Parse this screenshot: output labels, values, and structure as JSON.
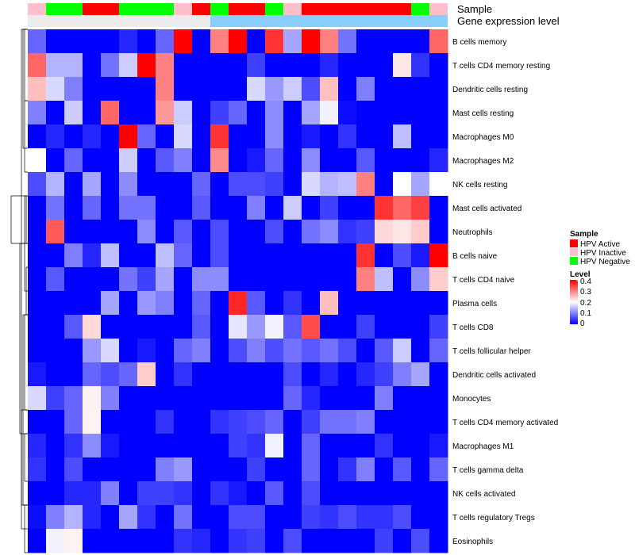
{
  "chart_data": {
    "type": "heatmap",
    "annotation_labels": [
      "Sample",
      "Gene expression level"
    ],
    "rows": [
      "B cells memory",
      "T cells CD4 memory resting",
      "Dendritic cells resting",
      "Mast cells resting",
      "Macrophages M0",
      "Macrophages M2",
      "NK cells resting",
      "Mast cells activated",
      "Neutrophils",
      "B cells naive",
      "T cells CD4 naive",
      "Plasma cells",
      "T cells CD8",
      "T cells follicular helper",
      "Dendritic cells activated",
      "Monocytes",
      "T cells CD4 memory activated",
      "Macrophages M1",
      "T cells gamma delta",
      "NK cells activated",
      "T cells regulatory  Tregs",
      "Eosinophils"
    ],
    "sample_groups": [
      "inactive",
      "negative",
      "negative",
      "active",
      "active",
      "negative",
      "negative",
      "negative",
      "inactive",
      "active",
      "negative",
      "active",
      "active",
      "negative",
      "inactive",
      "active",
      "active",
      "active",
      "active",
      "active",
      "active",
      "negative",
      "inactive"
    ],
    "expression_split": 10,
    "legend_sample": {
      "title": "Sample",
      "items": [
        {
          "key": "active",
          "label": "HPV Active",
          "color": "#ff0000"
        },
        {
          "key": "inactive",
          "label": "HPV Inactive",
          "color": "#ffc0cb"
        },
        {
          "key": "negative",
          "label": "HPV Negative",
          "color": "#00ff00"
        }
      ]
    },
    "legend_level": {
      "title": "Level",
      "ticks": [
        "0.4",
        "0.3",
        "0.2",
        "0.1",
        "0"
      ],
      "min": 0,
      "max": 0.4
    },
    "expression_colors": [
      "#ececec",
      "#87cefa"
    ],
    "color_scale": {
      "low": "#0000ff",
      "mid": "#ffffff",
      "high": "#ff0000",
      "midpoint": 0.2
    },
    "values": [
      [
        0.08,
        0,
        0,
        0,
        0,
        0.03,
        0,
        0.08,
        0.4,
        0,
        0.3,
        0.4,
        0,
        0.36,
        0.13,
        0.4,
        0.3,
        0.09,
        0,
        0,
        0,
        0,
        0.32
      ],
      [
        0.32,
        0.14,
        0.14,
        0,
        0.09,
        0.16,
        0.4,
        0.3,
        0,
        0,
        0,
        0,
        0.05,
        0,
        0,
        0,
        0.03,
        0,
        0,
        0,
        0.22,
        0.04,
        0
      ],
      [
        0.25,
        0.17,
        0.1,
        0,
        0,
        0,
        0,
        0.3,
        0,
        0,
        0,
        0,
        0.17,
        0.12,
        0.16,
        0.06,
        0.25,
        0,
        0.1,
        0,
        0,
        0,
        0
      ],
      [
        0.1,
        0,
        0.16,
        0,
        0.32,
        0,
        0,
        0.28,
        0.16,
        0,
        0.05,
        0.08,
        0,
        0.11,
        0,
        0.13,
        0.19,
        0.01,
        0,
        0,
        0,
        0,
        0
      ],
      [
        0,
        0.03,
        0,
        0.03,
        0,
        0.4,
        0.08,
        0,
        0.17,
        0,
        0.36,
        0,
        0,
        0.11,
        0,
        0.02,
        0,
        0.04,
        0,
        0,
        0.15,
        0,
        0
      ],
      [
        0.2,
        0,
        0.08,
        0,
        0,
        0.16,
        0,
        0.07,
        0.1,
        0,
        0.29,
        0,
        0.02,
        0.08,
        0,
        0.11,
        0,
        0,
        0.07,
        0,
        0,
        0,
        0.03
      ],
      [
        0.06,
        0.14,
        0,
        0.13,
        0,
        0.11,
        0,
        0,
        0,
        0.08,
        0,
        0.06,
        0.06,
        0.05,
        0,
        0.17,
        0.14,
        0.15,
        0.3,
        0,
        0.2,
        0.13,
        0.2
      ],
      [
        0,
        0.09,
        0,
        0.08,
        0,
        0.09,
        0.09,
        0,
        0,
        0.07,
        0,
        0,
        0.1,
        0,
        0.16,
        0,
        0.05,
        0,
        0,
        0.36,
        0.32,
        0.35,
        0
      ],
      [
        0,
        0.33,
        0,
        0,
        0,
        0,
        0.11,
        0,
        0.07,
        0,
        0.06,
        0,
        0,
        0.06,
        0,
        0.09,
        0.11,
        0.04,
        0.05,
        0.23,
        0.22,
        0.24,
        0
      ],
      [
        0,
        0,
        0.1,
        0.03,
        0.15,
        0,
        0,
        0.15,
        0.08,
        0,
        0.06,
        0,
        0,
        0,
        0,
        0,
        0,
        0,
        0.36,
        0,
        0.06,
        0.02,
        0.4
      ],
      [
        0,
        0.07,
        0,
        0,
        0,
        0.09,
        0.05,
        0.13,
        0,
        0.11,
        0.11,
        0,
        0,
        0,
        0,
        0,
        0,
        0,
        0.3,
        0.15,
        0,
        0.11,
        0.24
      ],
      [
        0,
        0,
        0,
        0,
        0.13,
        0,
        0.12,
        0.1,
        0,
        0.08,
        0,
        0.37,
        0.07,
        0,
        0.04,
        0,
        0.25,
        0,
        0,
        0,
        0,
        0,
        0
      ],
      [
        0,
        0,
        0.07,
        0.23,
        0,
        0,
        0,
        0,
        0,
        0.07,
        0,
        0.18,
        0.12,
        0.19,
        0.07,
        0.34,
        0,
        0,
        0.05,
        0,
        0,
        0,
        0.05
      ],
      [
        0,
        0,
        0,
        0.12,
        0.17,
        0,
        0.02,
        0,
        0.08,
        0.1,
        0,
        0.06,
        0.1,
        0.06,
        0.09,
        0.07,
        0.09,
        0.06,
        0,
        0.07,
        0.16,
        0,
        0.08
      ],
      [
        0.02,
        0,
        0,
        0.08,
        0.06,
        0.08,
        0.24,
        0,
        0.04,
        0,
        0,
        0,
        0,
        0,
        0.06,
        0,
        0.03,
        0,
        0.03,
        0.05,
        0.1,
        0.13,
        0
      ],
      [
        0.17,
        0.05,
        0.08,
        0.21,
        0.1,
        0,
        0,
        0,
        0,
        0,
        0,
        0,
        0,
        0,
        0.08,
        0.03,
        0,
        0,
        0,
        0.1,
        0,
        0,
        0
      ],
      [
        0,
        0,
        0.08,
        0.21,
        0,
        0,
        0,
        0.04,
        0,
        0,
        0.04,
        0.05,
        0.06,
        0.08,
        0,
        0.05,
        0.09,
        0.09,
        0.1,
        0,
        0,
        0,
        0
      ],
      [
        0.03,
        0,
        0.04,
        0.11,
        0.02,
        0,
        0,
        0,
        0,
        0,
        0,
        0.05,
        0.04,
        0.19,
        0,
        0.08,
        0,
        0,
        0,
        0.04,
        0,
        0,
        0.02
      ],
      [
        0.04,
        0,
        0.06,
        0,
        0,
        0,
        0,
        0.1,
        0.12,
        0,
        0,
        0,
        0.05,
        0,
        0,
        0.08,
        0,
        0.04,
        0.1,
        0,
        0.07,
        0,
        0.08
      ],
      [
        0,
        0,
        0.03,
        0.03,
        0.1,
        0,
        0.05,
        0.05,
        0.04,
        0,
        0.04,
        0.02,
        0,
        0.07,
        0,
        0.06,
        0,
        0,
        0,
        0,
        0,
        0,
        0
      ],
      [
        0.01,
        0.1,
        0.14,
        0.03,
        0,
        0.13,
        0.04,
        0,
        0.09,
        0,
        0,
        0.06,
        0.06,
        0,
        0,
        0.05,
        0.04,
        0.06,
        0.04,
        0.04,
        0.06,
        0,
        0
      ],
      [
        0,
        0.19,
        0.21,
        0,
        0,
        0,
        0,
        0,
        0.04,
        0.03,
        0,
        0.04,
        0.05,
        0,
        0.06,
        0,
        0,
        0,
        0,
        0.05,
        0,
        0.06,
        0
      ]
    ],
    "dendrogram": [
      {
        "stem": 22,
        "h": 3,
        "t1": 1,
        "b1": 8,
        "t2": 8,
        "b2": 21
      },
      {
        "stem": 21,
        "h": 6,
        "t1": 8,
        "b1": 13,
        "t2": 13,
        "b2": 10
      },
      {
        "stem": 20,
        "h": 4,
        "t1": 10,
        "b1": 12,
        "t2": 12,
        "b2": 18
      },
      {
        "stem": 10,
        "h": 1,
        "t1": 8,
        "b1": 10,
        "t2": 10,
        "b2": 12
      },
      {
        "stem": 9,
        "h": 0,
        "t1": 8,
        "b1": 9,
        "t2": 9,
        "b2": 10
      },
      {
        "stem": 12,
        "h": 0,
        "t1": 11,
        "b1": 12,
        "t2": 12,
        "b2": 13
      },
      {
        "stem": 18,
        "h": 2,
        "t1": 13,
        "b1": 15,
        "t2": 15,
        "b2": 21
      },
      {
        "stem": 15,
        "h": 1,
        "t1": 13,
        "b1": 15,
        "t2": 15,
        "b2": 17
      },
      {
        "stem": 21,
        "h": 3,
        "t1": 17,
        "b1": 19,
        "t2": 19,
        "b2": 22
      },
      {
        "stem": 8,
        "h": 2,
        "t1": 1,
        "b1": 3,
        "t2": 3,
        "b2": 6
      },
      {
        "stem": 3,
        "h": 1,
        "t1": 1,
        "b1": 2,
        "t2": 2,
        "b2": 4
      },
      {
        "stem": 6,
        "h": 1,
        "t1": 4,
        "b1": 5,
        "t2": 5,
        "b2": 7
      },
      {
        "stem": 19,
        "h": 1,
        "t1": 18,
        "b1": 19,
        "t2": 19,
        "b2": 20
      },
      {
        "stem": 22,
        "h": 1,
        "t1": 21,
        "b1": 22,
        "t2": 22,
        "b2": 23
      }
    ]
  }
}
